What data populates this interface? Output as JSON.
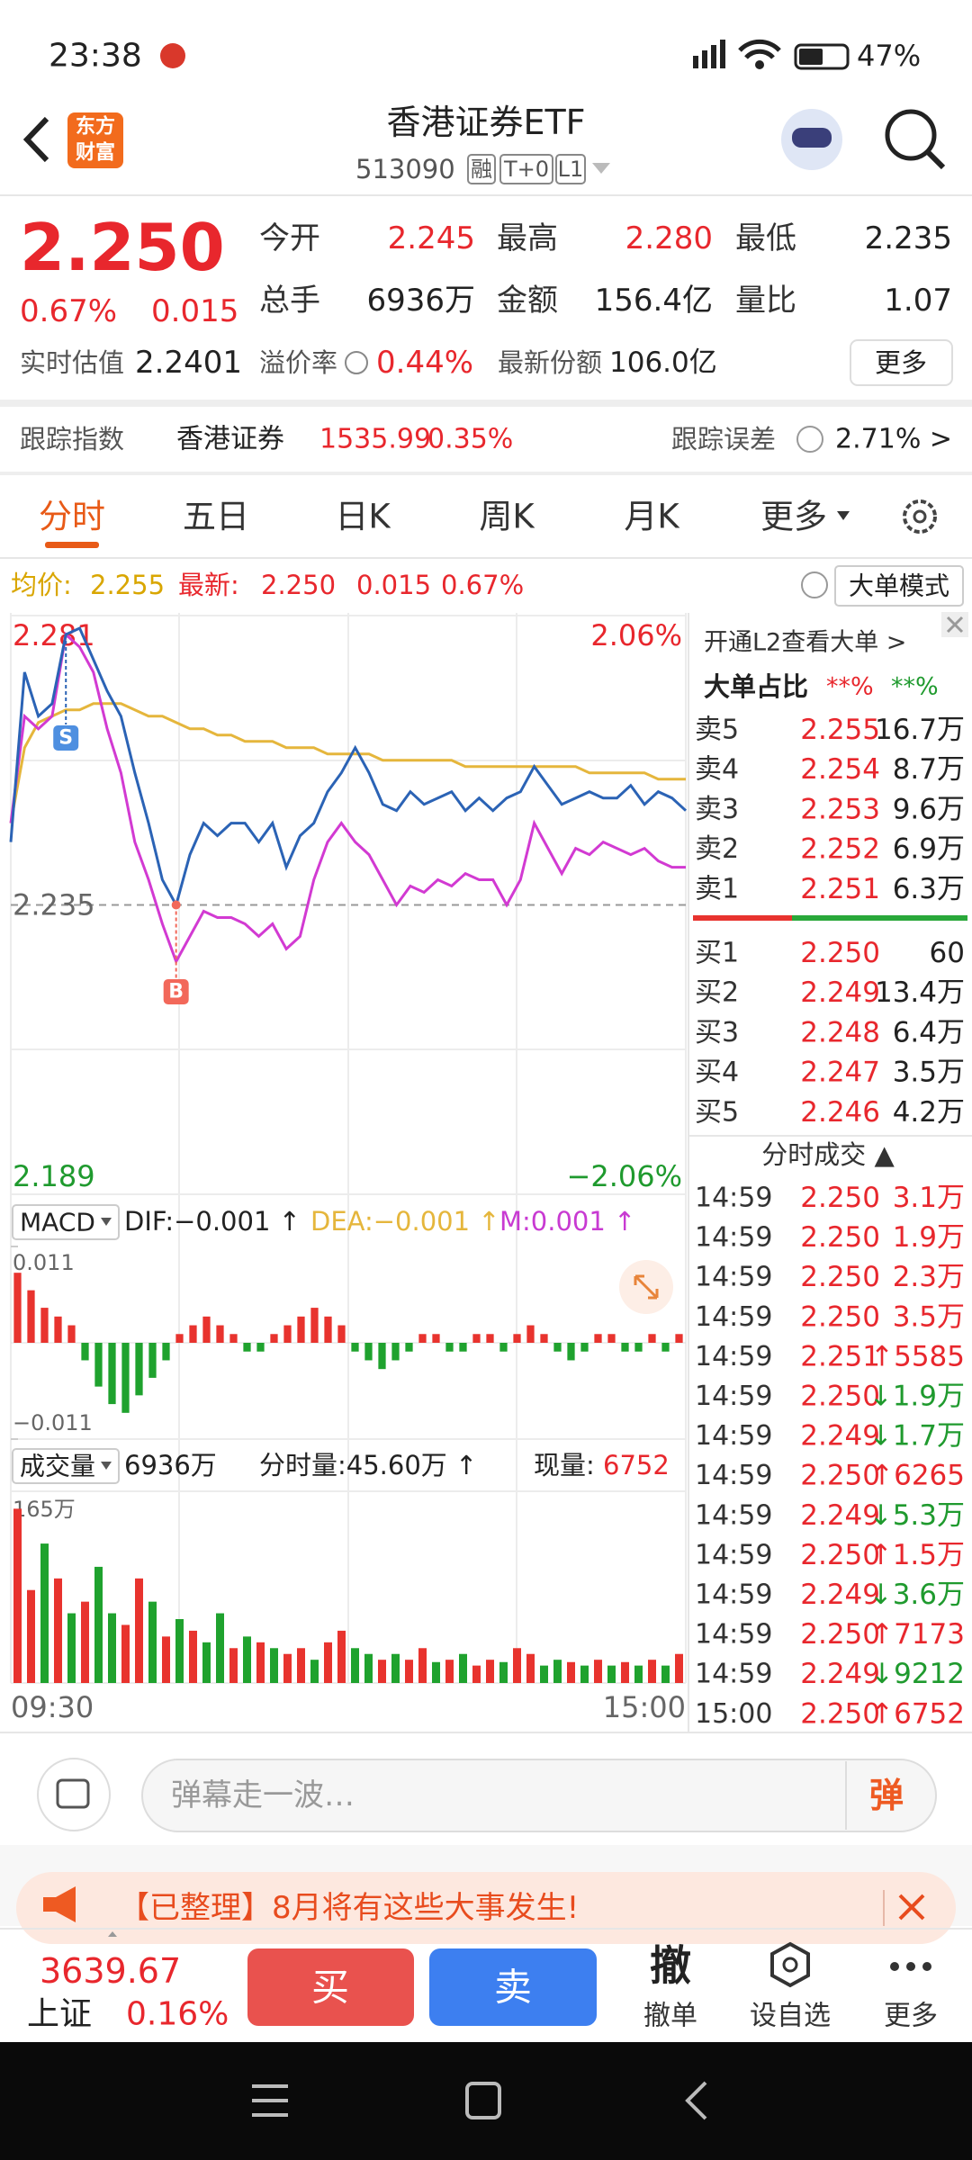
{
  "status_bar": {
    "time": "23:38",
    "battery": "47%"
  },
  "header": {
    "logo": [
      "东方",
      "财富"
    ],
    "title": "香港证券ETF",
    "code": "513090",
    "badges": [
      "融",
      "T+0",
      "L1"
    ]
  },
  "quote": {
    "price": "2.250",
    "change_pct": "0.67%",
    "change": "0.015",
    "fields": [
      {
        "label": "今开",
        "value": "2.245"
      },
      {
        "label": "最高",
        "value": "2.280"
      },
      {
        "label": "最低",
        "value": "2.235"
      },
      {
        "label": "总手",
        "value": "6936万"
      },
      {
        "label": "金额",
        "value": "156.4亿"
      },
      {
        "label": "量比",
        "value": "1.07"
      }
    ],
    "estimate_label": "实时估值",
    "estimate": "2.2401",
    "premium_label": "溢价率",
    "premium": "0.44%",
    "shares_label": "最新份额",
    "shares": "106.0亿",
    "more": "更多"
  },
  "tracking": {
    "label": "跟踪指数",
    "index": "香港证券",
    "index_value": "1535.99",
    "index_change": "0.35%",
    "error_label": "跟踪误差",
    "error": "2.71% >"
  },
  "tabs": [
    "分时",
    "五日",
    "日K",
    "周K",
    "月K",
    "更多"
  ],
  "info_bar": {
    "avg_label": "均价:",
    "avg": "2.255",
    "latest_label": "最新:",
    "latest": "2.250",
    "change": "0.015",
    "change_pct": "0.67%",
    "mode": "大单模式"
  },
  "intraday": {
    "type": "line",
    "ylim": [
      2.189,
      2.281
    ],
    "yticks": [
      2.281,
      2.235,
      2.189
    ],
    "right_labels": [
      "2.06%",
      "−2.06%"
    ],
    "x_labels": [
      "09:30",
      "15:00"
    ],
    "markers": [
      "S",
      "B"
    ],
    "series": [
      {
        "color": "#2b63b5",
        "values": [
          2.245,
          2.272,
          2.265,
          2.267,
          2.278,
          2.279,
          2.274,
          2.269,
          2.265,
          2.256,
          2.248,
          2.239,
          2.235,
          2.243,
          2.248,
          2.246,
          2.248,
          2.248,
          2.245,
          2.248,
          2.241,
          2.246,
          2.248,
          2.253,
          2.256,
          2.26,
          2.256,
          2.251,
          2.25,
          2.253,
          2.251,
          2.252,
          2.253,
          2.25,
          2.252,
          2.25,
          2.252,
          2.253,
          2.257,
          2.254,
          2.251,
          2.252,
          2.253,
          2.252,
          2.252,
          2.254,
          2.251,
          2.253,
          2.252,
          2.25
        ]
      },
      {
        "color": "#d23ad2",
        "values": [
          2.248,
          2.265,
          2.263,
          2.265,
          2.278,
          2.276,
          2.272,
          2.263,
          2.256,
          2.245,
          2.239,
          2.232,
          2.226,
          2.23,
          2.234,
          2.233,
          2.233,
          2.232,
          2.23,
          2.232,
          2.228,
          2.23,
          2.239,
          2.245,
          2.248,
          2.245,
          2.243,
          2.239,
          2.235,
          2.238,
          2.237,
          2.239,
          2.238,
          2.24,
          2.239,
          2.239,
          2.235,
          2.239,
          2.248,
          2.244,
          2.24,
          2.244,
          2.243,
          2.245,
          2.244,
          2.243,
          2.244,
          2.242,
          2.241,
          2.241
        ]
      },
      {
        "color": "#e5b63c",
        "values": [
          2.248,
          2.26,
          2.264,
          2.265,
          2.266,
          2.266,
          2.267,
          2.267,
          2.267,
          2.266,
          2.265,
          2.265,
          2.264,
          2.263,
          2.263,
          2.262,
          2.262,
          2.261,
          2.261,
          2.261,
          2.26,
          2.26,
          2.26,
          2.259,
          2.259,
          2.259,
          2.259,
          2.258,
          2.258,
          2.258,
          2.258,
          2.258,
          2.258,
          2.257,
          2.257,
          2.257,
          2.257,
          2.257,
          2.257,
          2.257,
          2.257,
          2.257,
          2.256,
          2.256,
          2.256,
          2.256,
          2.256,
          2.255,
          2.255,
          2.255
        ]
      }
    ]
  },
  "macd": {
    "type": "bar",
    "selector": "MACD",
    "dif": "DIF:−0.001 ↑",
    "dea": "DEA:−0.001 ↑",
    "m": "M:0.001 ↑",
    "ylim": [
      -0.011,
      0.011
    ],
    "yticks": [
      0.011,
      {
        "value": -0.011,
        "label": "−0.011"
      }
    ],
    "up_color": "#e8332e",
    "down_color": "#1fa22e",
    "values": [
      0.008,
      0.006,
      0.004,
      0.003,
      0.002,
      -0.002,
      -0.005,
      -0.007,
      -0.008,
      -0.006,
      -0.004,
      -0.002,
      0.001,
      0.002,
      0.003,
      0.002,
      0.001,
      -0.001,
      -0.001,
      0.001,
      0.002,
      0.003,
      0.004,
      0.003,
      0.002,
      -0.001,
      -0.002,
      -0.003,
      -0.002,
      -0.001,
      0.001,
      0.001,
      -0.001,
      -0.001,
      0.001,
      0.001,
      -0.001,
      0.001,
      0.002,
      0.001,
      -0.001,
      -0.002,
      -0.001,
      0.001,
      0.001,
      -0.001,
      -0.001,
      0.001,
      -0.001,
      0.001
    ]
  },
  "volume": {
    "type": "bar",
    "selector": "成交量",
    "total": "6936万",
    "minute_volume": "分时量:45.60万 ↑",
    "current_label": "现量:",
    "current": "6752",
    "ylim": [
      0,
      165
    ],
    "yticks": [
      {
        "value": 165,
        "label": "165万"
      }
    ],
    "values": [
      150,
      80,
      120,
      90,
      60,
      70,
      100,
      60,
      50,
      90,
      70,
      40,
      55,
      45,
      35,
      60,
      30,
      40,
      35,
      30,
      25,
      30,
      20,
      35,
      45,
      30,
      25,
      20,
      25,
      20,
      30,
      18,
      20,
      25,
      15,
      20,
      18,
      30,
      25,
      15,
      20,
      18,
      15,
      20,
      15,
      18,
      15,
      20,
      15,
      25
    ],
    "bar_colors": [
      "#e8332e",
      "#e8332e",
      "#1fa22e",
      "#e8332e",
      "#1fa22e",
      "#e8332e",
      "#1fa22e",
      "#1fa22e",
      "#e8332e",
      "#e8332e",
      "#1fa22e",
      "#e8332e",
      "#1fa22e",
      "#e8332e",
      "#1fa22e",
      "#1fa22e",
      "#e8332e",
      "#1fa22e",
      "#e8332e",
      "#1fa22e",
      "#e8332e",
      "#e8332e",
      "#1fa22e",
      "#e8332e",
      "#e8332e",
      "#1fa22e",
      "#1fa22e",
      "#e8332e",
      "#1fa22e",
      "#e8332e",
      "#e8332e",
      "#1fa22e",
      "#e8332e",
      "#1fa22e",
      "#e8332e",
      "#e8332e",
      "#1fa22e",
      "#e8332e",
      "#e8332e",
      "#1fa22e",
      "#1fa22e",
      "#e8332e",
      "#1fa22e",
      "#e8332e",
      "#1fa22e",
      "#e8332e",
      "#1fa22e",
      "#e8332e",
      "#1fa22e",
      "#e8332e"
    ]
  },
  "order_book": {
    "l2_promo": "开通L2查看大单 >",
    "ratio_label": "大单占比",
    "ratio_buy": "**%",
    "ratio_sell": "**%",
    "asks": [
      [
        "卖5",
        "2.255",
        "16.7万"
      ],
      [
        "卖4",
        "2.254",
        "8.7万"
      ],
      [
        "卖3",
        "2.253",
        "9.6万"
      ],
      [
        "卖2",
        "2.252",
        "6.9万"
      ],
      [
        "卖1",
        "2.251",
        "6.3万"
      ]
    ],
    "bids": [
      [
        "买1",
        "2.250",
        "60"
      ],
      [
        "买2",
        "2.249",
        "13.4万"
      ],
      [
        "买3",
        "2.248",
        "6.4万"
      ],
      [
        "买4",
        "2.247",
        "3.5万"
      ],
      [
        "买5",
        "2.246",
        "4.2万"
      ]
    ],
    "trades_title": "分时成交 ▲",
    "trades": [
      [
        "14:59",
        "2.250",
        "3.1万"
      ],
      [
        "14:59",
        "2.250",
        "1.9万"
      ],
      [
        "14:59",
        "2.250",
        "2.3万"
      ],
      [
        "14:59",
        "2.250",
        "3.5万"
      ],
      [
        "14:59",
        "2.251",
        "↑5585"
      ],
      [
        "14:59",
        "2.250",
        "↓1.9万"
      ],
      [
        "14:59",
        "2.249",
        "↓1.7万"
      ],
      [
        "14:59",
        "2.250",
        "↑6265"
      ],
      [
        "14:59",
        "2.249",
        "↓5.3万"
      ],
      [
        "14:59",
        "2.250",
        "↑1.5万"
      ],
      [
        "14:59",
        "2.249",
        "↓3.6万"
      ],
      [
        "14:59",
        "2.250",
        "↑7173"
      ],
      [
        "14:59",
        "2.249",
        "↓9212"
      ],
      [
        "15:00",
        "2.250",
        "↑6752"
      ]
    ]
  },
  "comment_bar": {
    "placeholder": "弹幕走一波…",
    "danmaku": "弹"
  },
  "banner": {
    "text": "【已整理】8月将有这些大事发生!"
  },
  "bottom_bar": {
    "index_value": "3639.67",
    "index_name": "上证",
    "index_change": "0.16%",
    "buy": "买",
    "sell": "卖",
    "cancel_icon": "撤",
    "cancel": "撤单",
    "watch": "设自选",
    "more": "更多"
  }
}
